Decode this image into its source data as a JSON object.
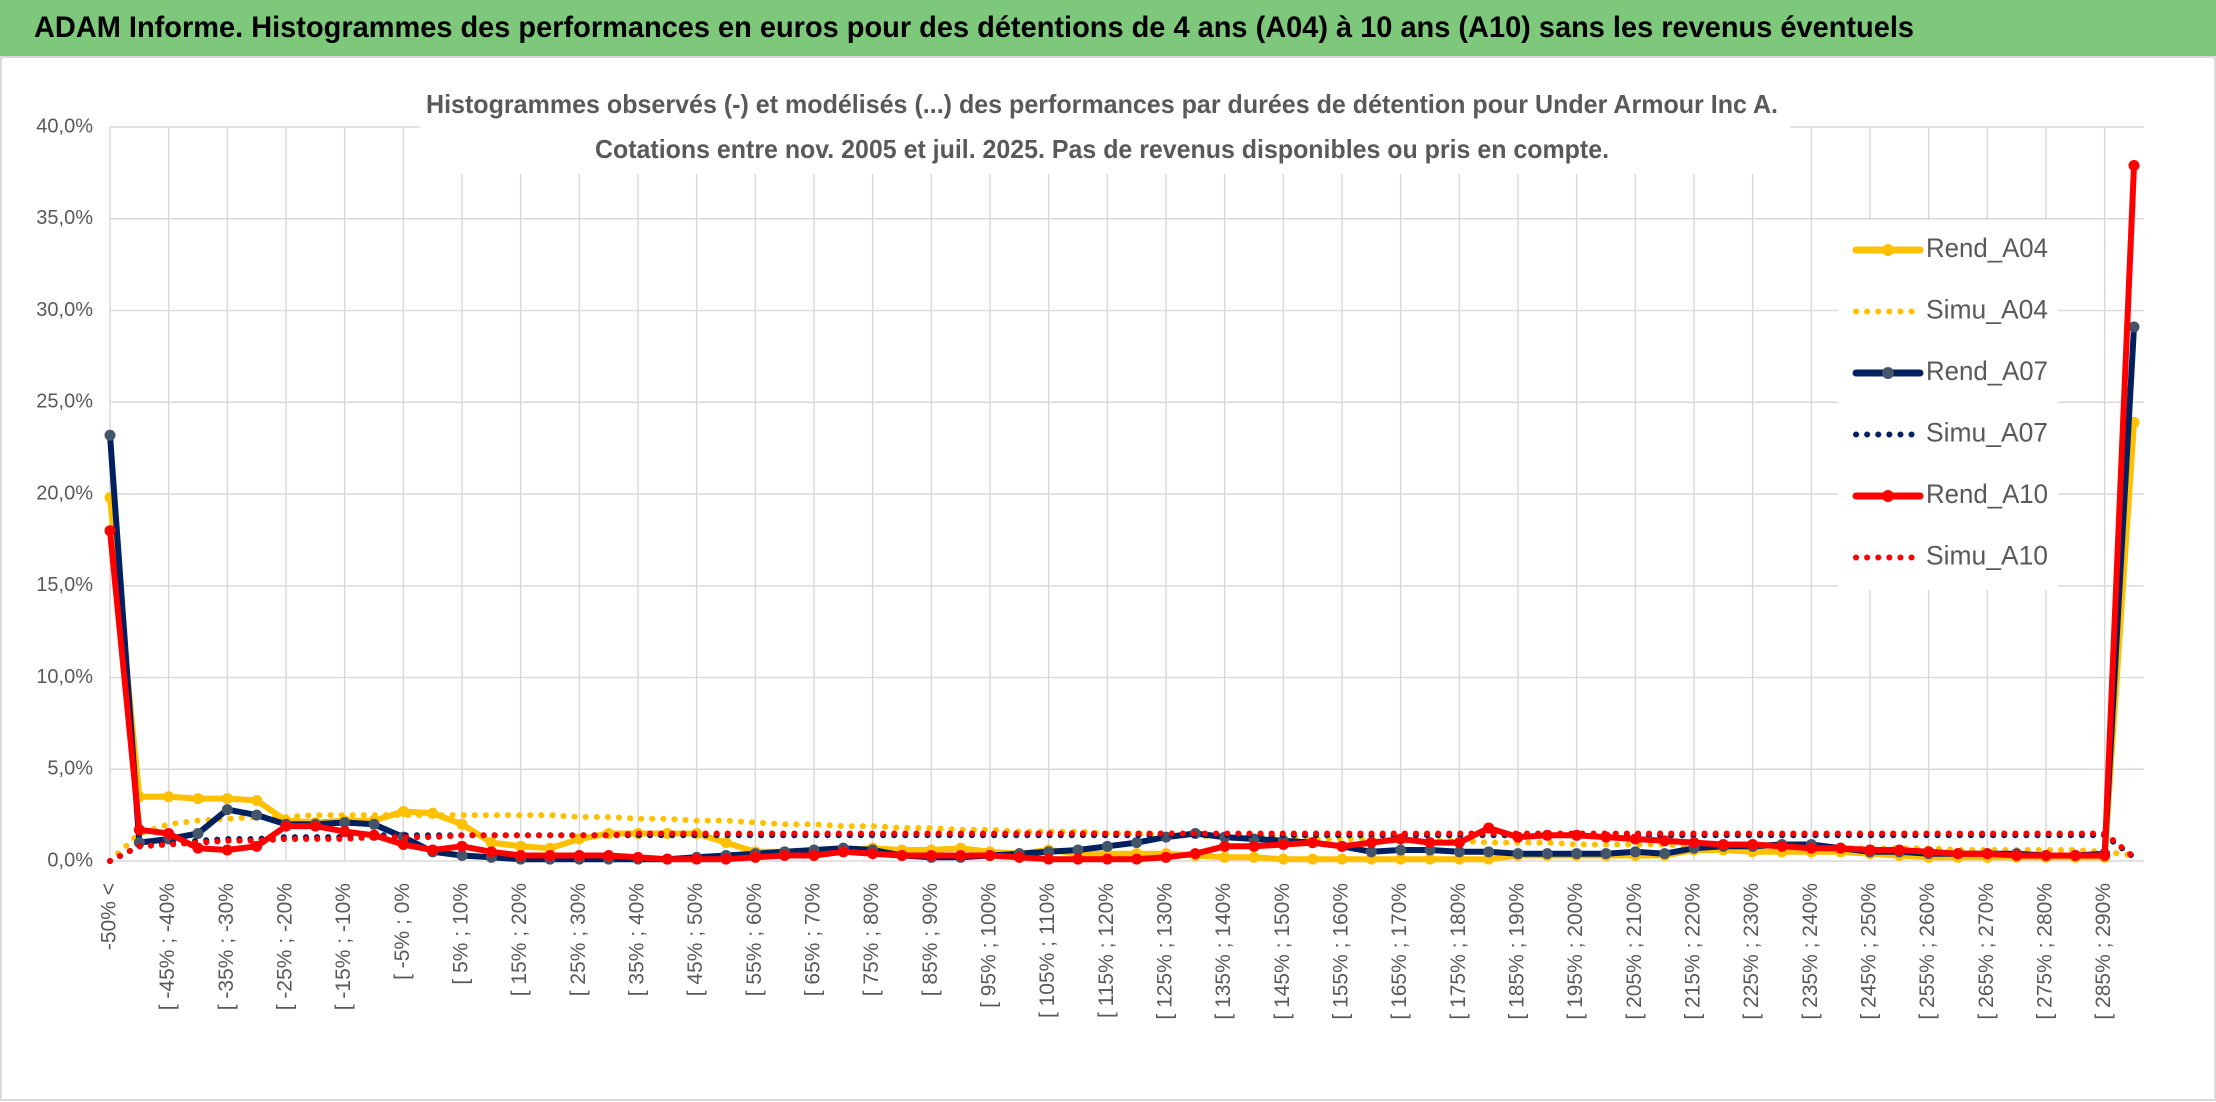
{
  "header": {
    "title": "ADAM Informe. Histogrammes des performances en euros pour des détentions de 4 ans (A04) à 10 ans (A10) sans les revenus éventuels"
  },
  "chart_data": {
    "type": "line",
    "title": "Histogrammes observés (-) et modélisés (...) des performances par durées de détention pour Under Armour Inc A.",
    "subtitle": "Cotations entre nov. 2005 et juil. 2025. Pas de revenus disponibles ou pris en compte.",
    "categories": [
      "-50% <",
      null,
      "[ -45% ; -40%",
      null,
      "[ -35% ; -30%",
      null,
      "[ -25% ; -20%",
      null,
      "[ -15% ; -10%",
      null,
      "[ -5% ; 0%",
      null,
      "[ 5% ; 10%",
      null,
      "[ 15% ; 20%",
      null,
      "[ 25% ; 30%",
      null,
      "[ 35% ; 40%",
      null,
      "[ 45% ; 50%",
      null,
      "[ 55% ; 60%",
      null,
      "[ 65% ; 70%",
      null,
      "[ 75% ; 80%",
      null,
      "[ 85% ; 90%",
      null,
      "[ 95% ; 100%",
      null,
      "[ 105% ; 110%",
      null,
      "[ 115% ; 120%",
      null,
      "[ 125% ; 130%",
      null,
      "[ 135% ; 140%",
      null,
      "[ 145% ; 150%",
      null,
      "[ 155% ; 160%",
      null,
      "[ 165% ; 170%",
      null,
      "[ 175% ; 180%",
      null,
      "[ 185% ; 190%",
      null,
      "[ 195% ; 200%",
      null,
      "[ 205% ; 210%",
      null,
      "[ 215% ; 220%",
      null,
      "[ 225% ; 230%",
      null,
      "[ 235% ; 240%",
      null,
      "[ 245% ; 250%",
      null,
      "[ 255% ; 260%",
      null,
      "[ 265% ; 270%",
      null,
      "[ 275% ; 280%",
      null,
      "[ 285% ; 290%",
      null
    ],
    "series": [
      {
        "name": "Rend_A04",
        "color": "#ffc000",
        "marker_color": "#ffc000",
        "line_style": "solid",
        "marker": true,
        "values": [
          19.8,
          3.5,
          3.5,
          3.4,
          3.4,
          3.3,
          2.2,
          2.1,
          2.2,
          2.2,
          2.7,
          2.6,
          2.0,
          1.0,
          0.8,
          0.7,
          1.2,
          1.5,
          1.5,
          1.5,
          1.5,
          1.0,
          0.5,
          0.5,
          0.5,
          0.6,
          0.7,
          0.6,
          0.6,
          0.7,
          0.5,
          0.4,
          0.6,
          0.4,
          0.4,
          0.4,
          0.4,
          0.3,
          0.2,
          0.2,
          0.1,
          0.1,
          0.1,
          0.1,
          0.1,
          0.1,
          0.1,
          0.1,
          0.3,
          0.3,
          0.3,
          0.3,
          0.3,
          0.3,
          0.6,
          0.6,
          0.5,
          0.5,
          0.5,
          0.5,
          0.4,
          0.3,
          0.2,
          0.2,
          0.2,
          0.2,
          0.2,
          0.2,
          0.2,
          23.9
        ]
      },
      {
        "name": "Simu_A04",
        "color": "#ffc000",
        "line_style": "dotted",
        "marker": false,
        "values": [
          0,
          1.5,
          2.0,
          2.2,
          2.3,
          2.4,
          2.4,
          2.5,
          2.5,
          2.5,
          2.5,
          2.5,
          2.5,
          2.5,
          2.5,
          2.5,
          2.4,
          2.4,
          2.3,
          2.3,
          2.2,
          2.2,
          2.1,
          2.0,
          2.0,
          1.9,
          1.9,
          1.8,
          1.8,
          1.7,
          1.7,
          1.6,
          1.6,
          1.6,
          1.5,
          1.5,
          1.4,
          1.4,
          1.3,
          1.3,
          1.3,
          1.2,
          1.2,
          1.2,
          1.1,
          1.1,
          1.1,
          1.0,
          1.0,
          1.0,
          0.9,
          0.9,
          0.9,
          0.9,
          0.8,
          0.8,
          0.8,
          0.8,
          0.7,
          0.7,
          0.7,
          0.7,
          0.7,
          0.6,
          0.6,
          0.6,
          0.6,
          0.6,
          0.5,
          0.3
        ]
      },
      {
        "name": "Rend_A07",
        "color": "#002060",
        "marker_color": "#44546a",
        "line_style": "solid",
        "marker": true,
        "values": [
          23.2,
          1.0,
          1.2,
          1.5,
          2.8,
          2.5,
          2.0,
          2.0,
          2.1,
          2.0,
          1.3,
          0.5,
          0.3,
          0.2,
          0.1,
          0.1,
          0.1,
          0.1,
          0.1,
          0.1,
          0.2,
          0.3,
          0.4,
          0.5,
          0.6,
          0.7,
          0.6,
          0.3,
          0.2,
          0.2,
          0.3,
          0.4,
          0.5,
          0.6,
          0.8,
          1.0,
          1.3,
          1.5,
          1.3,
          1.2,
          1.1,
          1.0,
          0.8,
          0.5,
          0.6,
          0.6,
          0.5,
          0.5,
          0.4,
          0.4,
          0.4,
          0.4,
          0.5,
          0.4,
          0.7,
          0.8,
          0.8,
          0.9,
          0.9,
          0.7,
          0.5,
          0.5,
          0.4,
          0.4,
          0.4,
          0.4,
          0.3,
          0.3,
          0.4,
          29.1
        ]
      },
      {
        "name": "Simu_A07",
        "color": "#002060",
        "line_style": "dotted",
        "marker": false,
        "values": [
          0,
          0.8,
          1.0,
          1.1,
          1.2,
          1.2,
          1.3,
          1.3,
          1.3,
          1.4,
          1.4,
          1.4,
          1.4,
          1.4,
          1.4,
          1.4,
          1.4,
          1.4,
          1.4,
          1.4,
          1.4,
          1.4,
          1.4,
          1.4,
          1.4,
          1.4,
          1.4,
          1.4,
          1.4,
          1.4,
          1.4,
          1.4,
          1.4,
          1.4,
          1.4,
          1.4,
          1.4,
          1.4,
          1.4,
          1.4,
          1.4,
          1.4,
          1.4,
          1.4,
          1.4,
          1.4,
          1.4,
          1.4,
          1.4,
          1.4,
          1.4,
          1.4,
          1.4,
          1.4,
          1.4,
          1.4,
          1.4,
          1.4,
          1.4,
          1.4,
          1.4,
          1.4,
          1.4,
          1.4,
          1.4,
          1.4,
          1.4,
          1.4,
          1.4,
          0.2
        ]
      },
      {
        "name": "Rend_A10",
        "color": "#ff0000",
        "marker_color": "#ff0000",
        "line_style": "solid",
        "marker": true,
        "values": [
          18.0,
          1.7,
          1.5,
          0.7,
          0.6,
          0.8,
          1.9,
          1.9,
          1.6,
          1.4,
          0.9,
          0.6,
          0.8,
          0.5,
          0.3,
          0.3,
          0.3,
          0.3,
          0.2,
          0.1,
          0.1,
          0.1,
          0.2,
          0.3,
          0.3,
          0.5,
          0.4,
          0.3,
          0.3,
          0.3,
          0.3,
          0.2,
          0.1,
          0.1,
          0.1,
          0.1,
          0.2,
          0.4,
          0.8,
          0.8,
          0.9,
          1.0,
          0.8,
          1.0,
          1.2,
          1.0,
          1.0,
          1.8,
          1.3,
          1.4,
          1.4,
          1.3,
          1.2,
          1.1,
          1.0,
          0.9,
          0.9,
          0.8,
          0.7,
          0.7,
          0.6,
          0.6,
          0.5,
          0.4,
          0.4,
          0.3,
          0.3,
          0.3,
          0.3,
          37.9
        ]
      },
      {
        "name": "Simu_A10",
        "color": "#ff0000",
        "line_style": "dotted",
        "marker": false,
        "values": [
          0,
          0.8,
          0.9,
          1.0,
          1.1,
          1.1,
          1.2,
          1.2,
          1.2,
          1.3,
          1.3,
          1.3,
          1.4,
          1.4,
          1.4,
          1.4,
          1.4,
          1.4,
          1.5,
          1.5,
          1.5,
          1.5,
          1.5,
          1.5,
          1.5,
          1.5,
          1.5,
          1.5,
          1.5,
          1.5,
          1.5,
          1.5,
          1.5,
          1.5,
          1.5,
          1.5,
          1.5,
          1.5,
          1.5,
          1.5,
          1.5,
          1.5,
          1.5,
          1.5,
          1.5,
          1.5,
          1.5,
          1.5,
          1.5,
          1.5,
          1.5,
          1.5,
          1.5,
          1.5,
          1.5,
          1.5,
          1.5,
          1.5,
          1.5,
          1.5,
          1.5,
          1.5,
          1.5,
          1.5,
          1.5,
          1.5,
          1.5,
          1.5,
          1.5,
          0.2
        ]
      }
    ],
    "ylim": [
      0,
      40
    ],
    "yticks": [
      {
        "value": 0,
        "label": "0,0%"
      },
      {
        "value": 5,
        "label": "5,0%"
      },
      {
        "value": 10,
        "label": "10,0%"
      },
      {
        "value": 15,
        "label": "15,0%"
      },
      {
        "value": 20,
        "label": "20,0%"
      },
      {
        "value": 25,
        "label": "25,0%"
      },
      {
        "value": 30,
        "label": "30,0%"
      },
      {
        "value": 35,
        "label": "35,0%"
      },
      {
        "value": 40,
        "label": "40,0%"
      }
    ],
    "grid": true,
    "legend": "upper right"
  }
}
